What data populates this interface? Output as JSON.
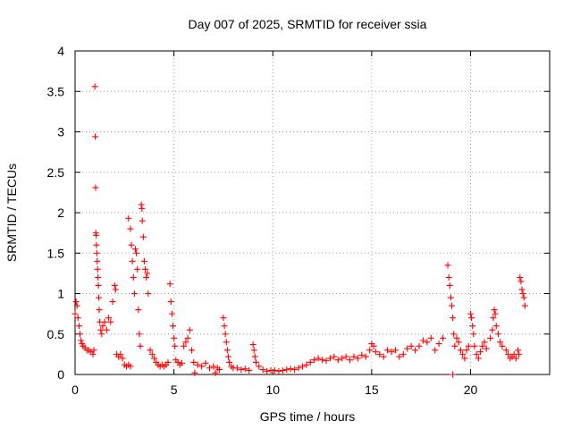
{
  "chart_data": {
    "type": "scatter",
    "title": "Day 007 of 2025, SRMTID for receiver ssia",
    "xlabel": "GPS time / hours",
    "ylabel": "SRMTID / TECUs",
    "xlim": [
      0,
      24
    ],
    "ylim": [
      0,
      4
    ],
    "xticks": [
      "0",
      "5",
      "10",
      "15",
      "20"
    ],
    "yticks": [
      "0",
      "0.5",
      "1",
      "1.5",
      "2",
      "2.5",
      "3",
      "3.5",
      "4"
    ],
    "grid": true,
    "marker": "+",
    "series": [
      {
        "name": "ssia",
        "color": "#ff0000",
        "points": [
          [
            0.0,
            0.75
          ],
          [
            0.05,
            0.9
          ],
          [
            0.1,
            0.85
          ],
          [
            0.15,
            0.7
          ],
          [
            0.2,
            0.6
          ],
          [
            0.25,
            0.5
          ],
          [
            0.3,
            0.42
          ],
          [
            0.35,
            0.38
          ],
          [
            0.4,
            0.35
          ],
          [
            0.5,
            0.33
          ],
          [
            0.6,
            0.3
          ],
          [
            0.7,
            0.3
          ],
          [
            0.8,
            0.28
          ],
          [
            0.9,
            0.25
          ],
          [
            0.95,
            0.3
          ],
          [
            1.0,
            3.56
          ],
          [
            1.02,
            2.94
          ],
          [
            1.04,
            2.31
          ],
          [
            1.05,
            1.75
          ],
          [
            1.07,
            1.72
          ],
          [
            1.08,
            1.6
          ],
          [
            1.1,
            1.5
          ],
          [
            1.12,
            1.4
          ],
          [
            1.14,
            1.3
          ],
          [
            1.16,
            1.2
          ],
          [
            1.18,
            1.1
          ],
          [
            1.2,
            0.95
          ],
          [
            1.22,
            0.8
          ],
          [
            1.25,
            0.65
          ],
          [
            1.3,
            0.55
          ],
          [
            1.35,
            0.5
          ],
          [
            1.4,
            0.6
          ],
          [
            1.5,
            0.65
          ],
          [
            1.6,
            0.55
          ],
          [
            1.7,
            0.7
          ],
          [
            1.8,
            0.65
          ],
          [
            1.9,
            0.9
          ],
          [
            2.0,
            1.1
          ],
          [
            2.05,
            1.05
          ],
          [
            2.1,
            0.25
          ],
          [
            2.2,
            0.22
          ],
          [
            2.3,
            0.25
          ],
          [
            2.4,
            0.2
          ],
          [
            2.5,
            0.12
          ],
          [
            2.6,
            0.1
          ],
          [
            2.7,
            0.12
          ],
          [
            2.8,
            0.1
          ],
          [
            2.7,
            1.93
          ],
          [
            2.8,
            1.8
          ],
          [
            2.85,
            1.6
          ],
          [
            2.9,
            1.4
          ],
          [
            2.95,
            1.2
          ],
          [
            3.0,
            1.0
          ],
          [
            3.05,
            1.55
          ],
          [
            3.1,
            1.5
          ],
          [
            3.15,
            1.3
          ],
          [
            3.2,
            0.8
          ],
          [
            3.25,
            0.5
          ],
          [
            3.3,
            0.35
          ],
          [
            3.35,
            2.1
          ],
          [
            3.38,
            2.05
          ],
          [
            3.4,
            1.9
          ],
          [
            3.45,
            1.7
          ],
          [
            3.5,
            1.4
          ],
          [
            3.55,
            1.3
          ],
          [
            3.6,
            1.2
          ],
          [
            3.65,
            1.25
          ],
          [
            3.7,
            1.0
          ],
          [
            3.8,
            0.3
          ],
          [
            3.9,
            0.25
          ],
          [
            4.0,
            0.2
          ],
          [
            4.1,
            0.15
          ],
          [
            4.2,
            0.12
          ],
          [
            4.3,
            0.1
          ],
          [
            4.4,
            0.12
          ],
          [
            4.5,
            0.1
          ],
          [
            4.6,
            0.12
          ],
          [
            4.7,
            0.15
          ],
          [
            4.8,
            1.12
          ],
          [
            4.85,
            0.9
          ],
          [
            4.9,
            0.75
          ],
          [
            4.95,
            0.6
          ],
          [
            5.0,
            0.45
          ],
          [
            5.05,
            0.35
          ],
          [
            5.1,
            0.18
          ],
          [
            5.2,
            0.15
          ],
          [
            5.3,
            0.12
          ],
          [
            5.4,
            0.14
          ],
          [
            5.5,
            0.35
          ],
          [
            5.6,
            0.4
          ],
          [
            5.7,
            0.45
          ],
          [
            5.8,
            0.55
          ],
          [
            5.9,
            0.3
          ],
          [
            6.0,
            0.15
          ],
          [
            6.05,
            0.02
          ],
          [
            6.2,
            0.12
          ],
          [
            6.4,
            0.1
          ],
          [
            6.6,
            0.14
          ],
          [
            6.8,
            0.08
          ],
          [
            7.0,
            0.1
          ],
          [
            7.1,
            0.02
          ],
          [
            7.2,
            0.08
          ],
          [
            7.3,
            0.06
          ],
          [
            7.5,
            0.7
          ],
          [
            7.55,
            0.6
          ],
          [
            7.6,
            0.5
          ],
          [
            7.65,
            0.4
          ],
          [
            7.7,
            0.3
          ],
          [
            7.75,
            0.22
          ],
          [
            7.8,
            0.15
          ],
          [
            7.9,
            0.1
          ],
          [
            8.0,
            0.08
          ],
          [
            8.2,
            0.08
          ],
          [
            8.4,
            0.06
          ],
          [
            8.6,
            0.07
          ],
          [
            8.8,
            0.05
          ],
          [
            9.0,
            0.37
          ],
          [
            9.05,
            0.3
          ],
          [
            9.1,
            0.22
          ],
          [
            9.15,
            0.15
          ],
          [
            9.3,
            0.1
          ],
          [
            9.5,
            0.06
          ],
          [
            9.7,
            0.04
          ],
          [
            9.9,
            0.05
          ],
          [
            10.1,
            0.05
          ],
          [
            10.3,
            0.04
          ],
          [
            10.5,
            0.05
          ],
          [
            10.7,
            0.06
          ],
          [
            10.9,
            0.07
          ],
          [
            11.1,
            0.06
          ],
          [
            11.3,
            0.08
          ],
          [
            11.5,
            0.1
          ],
          [
            11.7,
            0.12
          ],
          [
            11.9,
            0.15
          ],
          [
            12.1,
            0.18
          ],
          [
            12.3,
            0.2
          ],
          [
            12.5,
            0.18
          ],
          [
            12.7,
            0.17
          ],
          [
            12.9,
            0.2
          ],
          [
            13.1,
            0.22
          ],
          [
            13.3,
            0.18
          ],
          [
            13.5,
            0.2
          ],
          [
            13.7,
            0.22
          ],
          [
            13.9,
            0.18
          ],
          [
            14.1,
            0.22
          ],
          [
            14.3,
            0.2
          ],
          [
            14.5,
            0.24
          ],
          [
            14.7,
            0.22
          ],
          [
            14.9,
            0.3
          ],
          [
            15.0,
            0.38
          ],
          [
            15.1,
            0.35
          ],
          [
            15.2,
            0.28
          ],
          [
            15.4,
            0.25
          ],
          [
            15.6,
            0.22
          ],
          [
            15.8,
            0.3
          ],
          [
            16.0,
            0.28
          ],
          [
            16.2,
            0.3
          ],
          [
            16.4,
            0.22
          ],
          [
            16.6,
            0.25
          ],
          [
            16.8,
            0.32
          ],
          [
            17.0,
            0.35
          ],
          [
            17.2,
            0.3
          ],
          [
            17.4,
            0.35
          ],
          [
            17.6,
            0.42
          ],
          [
            17.8,
            0.4
          ],
          [
            18.0,
            0.45
          ],
          [
            18.2,
            0.3
          ],
          [
            18.4,
            0.38
          ],
          [
            18.6,
            0.45
          ],
          [
            18.85,
            1.35
          ],
          [
            18.9,
            1.2
          ],
          [
            18.95,
            1.1
          ],
          [
            19.0,
            0.95
          ],
          [
            19.05,
            0.85
          ],
          [
            19.1,
            0.7
          ],
          [
            19.15,
            0.5
          ],
          [
            19.2,
            0.35
          ],
          [
            19.1,
            0.0
          ],
          [
            19.3,
            0.45
          ],
          [
            19.4,
            0.4
          ],
          [
            19.5,
            0.3
          ],
          [
            19.6,
            0.25
          ],
          [
            19.7,
            0.2
          ],
          [
            19.8,
            0.3
          ],
          [
            19.9,
            0.35
          ],
          [
            20.0,
            0.75
          ],
          [
            20.05,
            0.7
          ],
          [
            20.1,
            0.6
          ],
          [
            20.15,
            0.5
          ],
          [
            20.2,
            0.35
          ],
          [
            20.3,
            0.25
          ],
          [
            20.4,
            0.2
          ],
          [
            20.5,
            0.28
          ],
          [
            20.6,
            0.35
          ],
          [
            20.7,
            0.4
          ],
          [
            20.8,
            0.32
          ],
          [
            21.0,
            0.45
          ],
          [
            21.1,
            0.55
          ],
          [
            21.15,
            0.7
          ],
          [
            21.2,
            0.8
          ],
          [
            21.25,
            0.75
          ],
          [
            21.3,
            0.6
          ],
          [
            21.4,
            0.5
          ],
          [
            21.5,
            0.4
          ],
          [
            21.6,
            0.35
          ],
          [
            21.8,
            0.3
          ],
          [
            21.9,
            0.25
          ],
          [
            22.0,
            0.2
          ],
          [
            22.1,
            0.22
          ],
          [
            22.2,
            0.25
          ],
          [
            22.3,
            0.2
          ],
          [
            22.4,
            0.3
          ],
          [
            22.45,
            0.25
          ],
          [
            22.5,
            1.2
          ],
          [
            22.55,
            1.15
          ],
          [
            22.6,
            1.05
          ],
          [
            22.65,
            1.0
          ],
          [
            22.7,
            0.95
          ],
          [
            22.75,
            0.85
          ]
        ]
      }
    ]
  }
}
